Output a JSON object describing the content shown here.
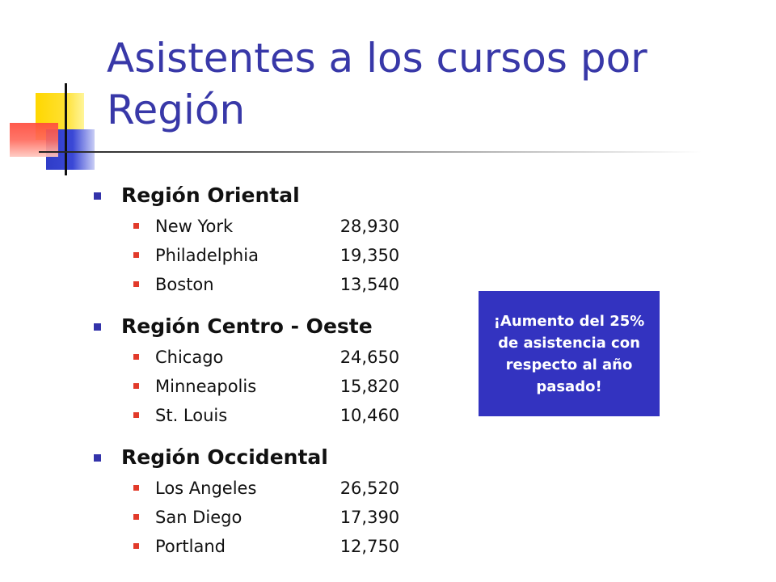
{
  "slide": {
    "title": "Asistentes a los cursos por Región",
    "regions": [
      {
        "name": "Región Oriental",
        "cities": [
          {
            "name": "New York",
            "value": "28,930"
          },
          {
            "name": "Philadelphia",
            "value": "19,350"
          },
          {
            "name": "Boston",
            "value": "13,540"
          }
        ]
      },
      {
        "name": "Región Centro - Oeste",
        "cities": [
          {
            "name": "Chicago",
            "value": "24,650"
          },
          {
            "name": "Minneapolis",
            "value": "15,820"
          },
          {
            "name": "St. Louis",
            "value": "10,460"
          }
        ]
      },
      {
        "name": "Región Occidental",
        "cities": [
          {
            "name": "Los Angeles",
            "value": "26,520"
          },
          {
            "name": "San Diego",
            "value": "17,390"
          },
          {
            "name": "Portland",
            "value": "12,750"
          }
        ]
      }
    ],
    "callout": "¡Aumento del 25% de asistencia con respecto al año pasado!"
  },
  "colors": {
    "title": "#3838a8",
    "callout_bg": "#3333c0",
    "region_bullet": "#3333aa",
    "city_bullet": "#e23a2a"
  }
}
